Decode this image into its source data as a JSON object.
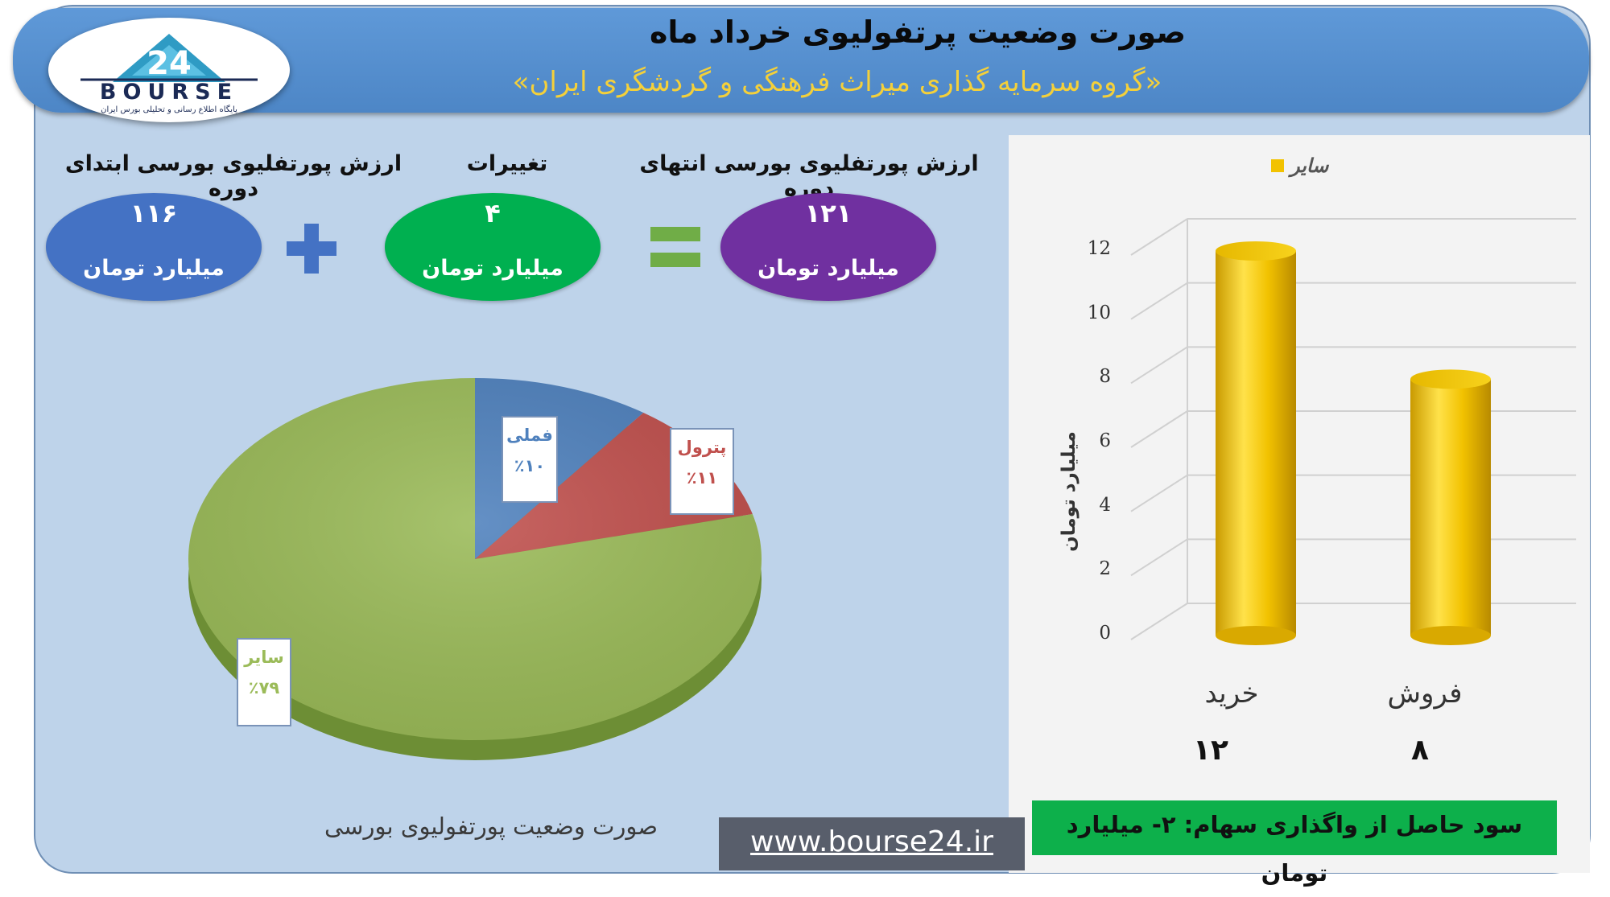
{
  "header": {
    "title": "صورت وضعیت پرتفولیوی خرداد ماه",
    "subtitle": "«گروه سرمایه گذاری میراث فرهنگی و گردشگری ایران»",
    "logo_text": "BOURSE",
    "logo_sub": "پایگاه اطلاع رسانی و تحلیلی بورس ایران"
  },
  "summary": {
    "end": {
      "label": "ارزش پورتفلیوی بورسی انتهای دوره",
      "value": "۱۲۱",
      "unit": "میلیارد تومان",
      "color": "#7030a0"
    },
    "change": {
      "label": "تغییرات",
      "value": "۴",
      "unit": "میلیارد تومان",
      "color": "#00b050"
    },
    "start": {
      "label": "ارزش پورتفلیوی بورسی ابتدای دوره",
      "value": "۱۱۶",
      "unit": "میلیارد تومان",
      "color": "#4472c4"
    },
    "equals_color": "#70ad47",
    "plus_color": "#4472c4"
  },
  "pie_caption": "صورت وضعیت پورتفولیوی بورسی",
  "bar_note": "سود حاصل از واگذاری سهام: ۲- میلیارد تومان",
  "url": "www.bourse24.ir",
  "chart_data": [
    {
      "type": "pie",
      "slices": [
        {
          "label": "فملی",
          "percent_label": "٪۱۰",
          "value": 10,
          "color": "#4f81bd"
        },
        {
          "label": "پترول",
          "percent_label": "٪۱۱",
          "value": 11,
          "color": "#c0504d"
        },
        {
          "label": "سایر",
          "percent_label": "٪۷۹",
          "value": 79,
          "color": "#9bbb59"
        }
      ]
    },
    {
      "type": "bar",
      "categories": [
        "خرید",
        "فروش"
      ],
      "category_value_labels": [
        "۱۲",
        "۸"
      ],
      "series": [
        {
          "name": "سایر",
          "values": [
            12,
            8
          ],
          "color": "#f2c200"
        }
      ],
      "ylabel": "میلیارد تومان",
      "ylim": [
        0,
        12
      ],
      "yticks": [
        0,
        2,
        4,
        6,
        8,
        10,
        12
      ],
      "legend": "top"
    }
  ]
}
